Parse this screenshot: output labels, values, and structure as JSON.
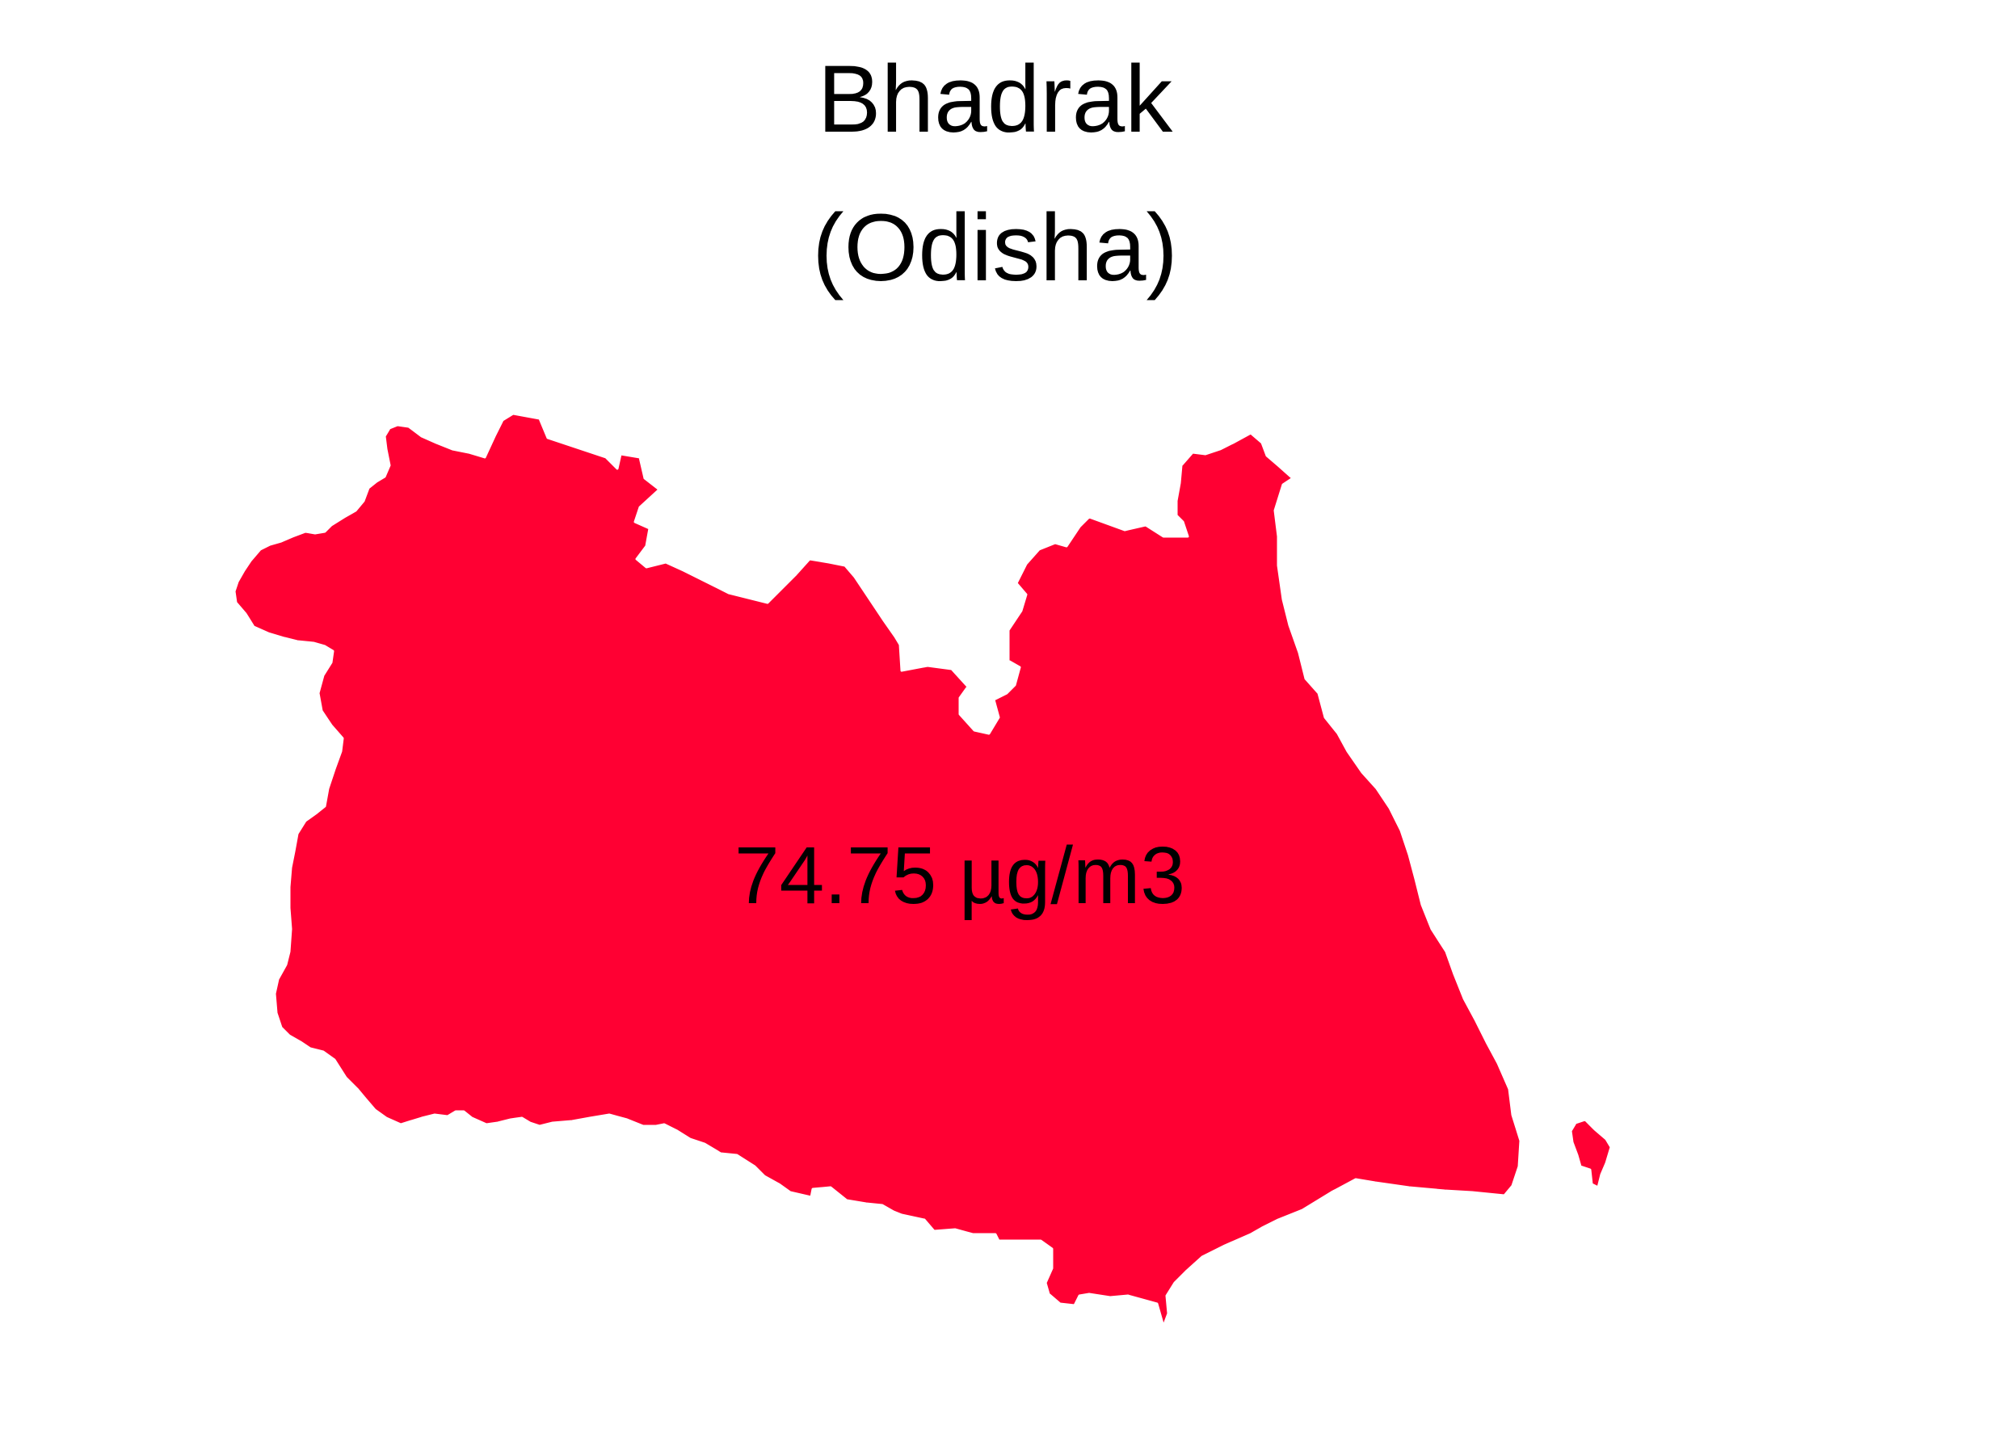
{
  "map": {
    "district": "Bhadrak",
    "state": "(Odisha)",
    "value_label": "74.75 µg/m3",
    "fill_color": "#ff0033",
    "outline_color": "#ffffff",
    "background_color": "#ffffff"
  }
}
